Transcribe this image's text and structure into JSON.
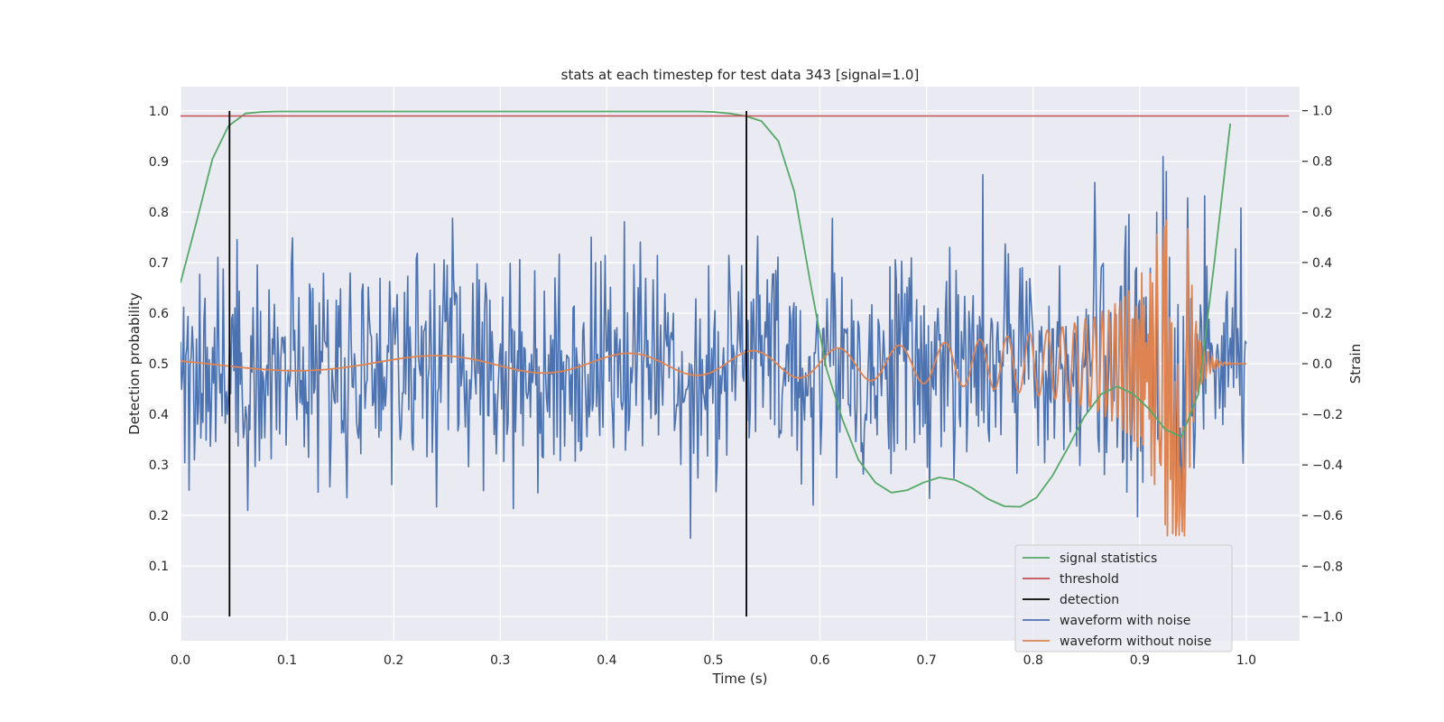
{
  "chart_data": {
    "type": "line",
    "title": "stats at each timestep for test data 343 [signal=1.0]",
    "xlabel": "Time (s)",
    "ylabel_left": "Detection probability",
    "ylabel_right": "Strain",
    "xlim": [
      0.0,
      1.05
    ],
    "ylim_left": [
      -0.048,
      1.048
    ],
    "ylim_right": [
      -1.095,
      1.095
    ],
    "x_ticks": [
      0.0,
      0.1,
      0.2,
      0.3,
      0.4,
      0.5,
      0.6,
      0.7,
      0.8,
      0.9,
      1.0
    ],
    "x_tick_labels": [
      "0.0",
      "0.1",
      "0.2",
      "0.3",
      "0.4",
      "0.5",
      "0.6",
      "0.7",
      "0.8",
      "0.9",
      "1.0"
    ],
    "y_left_ticks": [
      0.0,
      0.1,
      0.2,
      0.3,
      0.4,
      0.5,
      0.6,
      0.7,
      0.8,
      0.9,
      1.0
    ],
    "y_left_tick_labels": [
      "0.0",
      "0.1",
      "0.2",
      "0.3",
      "0.4",
      "0.5",
      "0.6",
      "0.7",
      "0.8",
      "0.9",
      "1.0"
    ],
    "y_right_ticks": [
      -1.0,
      -0.8,
      -0.6,
      -0.4,
      -0.2,
      0.0,
      0.2,
      0.4,
      0.6,
      0.8,
      1.0
    ],
    "y_right_tick_labels": [
      "−1.0",
      "−0.8",
      "−0.6",
      "−0.4",
      "−0.2",
      "0.0",
      "0.2",
      "0.4",
      "0.6",
      "0.8",
      "1.0"
    ],
    "grid": true,
    "legend_position": "lower-right",
    "colors": {
      "background": "#eaeaf2",
      "grid": "#ffffff",
      "signal": "#55a868",
      "threshold": "#c44e52",
      "detection": "#000000",
      "noisy": "#4c72b0",
      "clean": "#dd8452"
    },
    "series": [
      {
        "name": "signal statistics",
        "axis": "left",
        "x": [
          0.0,
          0.015,
          0.03,
          0.045,
          0.061,
          0.076,
          0.091,
          0.106,
          0.121,
          0.136,
          0.152,
          0.167,
          0.182,
          0.197,
          0.212,
          0.227,
          0.242,
          0.258,
          0.273,
          0.288,
          0.303,
          0.318,
          0.333,
          0.348,
          0.364,
          0.379,
          0.394,
          0.409,
          0.424,
          0.439,
          0.455,
          0.47,
          0.485,
          0.5,
          0.515,
          0.53,
          0.545,
          0.561,
          0.576,
          0.591,
          0.606,
          0.621,
          0.636,
          0.652,
          0.667,
          0.682,
          0.697,
          0.712,
          0.727,
          0.742,
          0.758,
          0.773,
          0.788,
          0.803,
          0.818,
          0.833,
          0.848,
          0.864,
          0.879,
          0.894,
          0.909,
          0.924,
          0.939,
          0.955,
          0.97,
          0.985
        ],
        "y": [
          0.66,
          0.78,
          0.905,
          0.97,
          0.995,
          0.998,
          0.999,
          0.999,
          0.999,
          0.999,
          0.999,
          0.999,
          0.999,
          0.999,
          0.999,
          0.999,
          0.999,
          0.999,
          0.999,
          0.999,
          0.999,
          0.999,
          0.999,
          0.999,
          0.999,
          0.999,
          0.999,
          0.999,
          0.999,
          0.999,
          0.999,
          0.999,
          0.999,
          0.998,
          0.995,
          0.99,
          0.98,
          0.94,
          0.84,
          0.66,
          0.49,
          0.39,
          0.31,
          0.265,
          0.245,
          0.25,
          0.265,
          0.275,
          0.27,
          0.255,
          0.232,
          0.218,
          0.217,
          0.235,
          0.278,
          0.335,
          0.395,
          0.44,
          0.455,
          0.44,
          0.41,
          0.37,
          0.355,
          0.44,
          0.7,
          0.975
        ]
      },
      {
        "name": "threshold",
        "axis": "left",
        "x": [
          0.0,
          1.04
        ],
        "y": [
          0.99,
          0.99
        ]
      },
      {
        "name": "detection",
        "axis": "left",
        "x": [
          0.046,
          0.531
        ],
        "y_range": [
          0.0,
          1.0
        ]
      },
      {
        "name": "waveform with noise",
        "axis": "right",
        "x_range": [
          0.0,
          1.0
        ],
        "n_points": 1000,
        "std": 0.22,
        "y_range": [
          -0.85,
          1.0
        ]
      },
      {
        "name": "waveform without noise",
        "axis": "right",
        "x_range": [
          0.0,
          1.0
        ],
        "merger_time": 0.943,
        "amplitude_start": 0.025,
        "amplitude_peak": 0.68,
        "y_range": [
          -0.72,
          0.68
        ]
      }
    ]
  }
}
